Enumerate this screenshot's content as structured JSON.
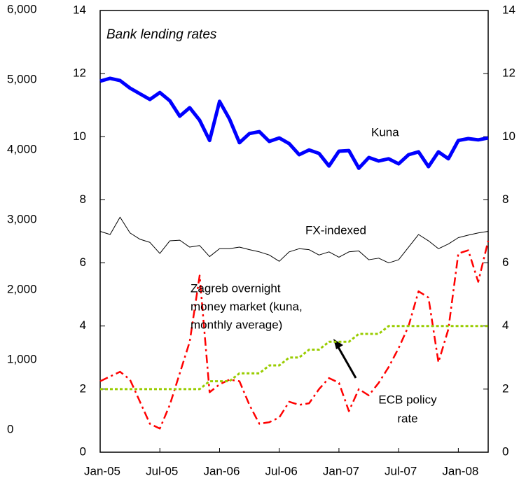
{
  "chart_data": [
    {
      "type": "line",
      "annotations": [
        {
          "text": "Bank lending rates"
        },
        {
          "text": "Kuna"
        },
        {
          "text": "FX-indexed"
        },
        {
          "lines": [
            "Zagreb overnight",
            "money market (kuna,",
            "monthly average)"
          ]
        },
        {
          "lines": [
            "ECB policy",
            "rate"
          ]
        }
      ],
      "categories": [
        "Jan-05",
        null,
        null,
        null,
        null,
        null,
        "Jul-05",
        null,
        null,
        null,
        null,
        null,
        "Jan-06",
        null,
        null,
        null,
        null,
        null,
        "Jul-06",
        null,
        null,
        null,
        null,
        null,
        "Jan-07",
        null,
        null,
        null,
        null,
        null,
        "Jul-07",
        null,
        null,
        null,
        null,
        null,
        "Jan-08",
        null,
        null,
        null
      ],
      "series": [
        {
          "name": "Kuna",
          "color": "#0000ff",
          "width": 5,
          "dash": "none",
          "values": [
            11.76,
            11.85,
            11.78,
            11.54,
            11.36,
            11.18,
            11.4,
            11.14,
            10.65,
            10.92,
            10.52,
            9.88,
            11.12,
            10.56,
            9.81,
            10.1,
            10.16,
            9.85,
            9.96,
            9.78,
            9.43,
            9.58,
            9.47,
            9.07,
            9.54,
            9.56,
            9.0,
            9.34,
            9.23,
            9.3,
            9.14,
            9.43,
            9.52,
            9.05,
            9.52,
            9.3,
            9.88,
            9.94,
            9.9,
            9.96
          ]
        },
        {
          "name": "FX-indexed",
          "color": "#000000",
          "width": 1,
          "dash": "none",
          "values": [
            7.0,
            6.9,
            7.45,
            6.95,
            6.75,
            6.65,
            6.3,
            6.7,
            6.72,
            6.5,
            6.55,
            6.2,
            6.45,
            6.45,
            6.5,
            6.42,
            6.35,
            6.25,
            6.05,
            6.35,
            6.45,
            6.42,
            6.25,
            6.35,
            6.18,
            6.35,
            6.38,
            6.1,
            6.15,
            6.0,
            6.1,
            6.5,
            6.9,
            6.7,
            6.45,
            6.6,
            6.8,
            6.88,
            6.95,
            7.0
          ]
        },
        {
          "name": "Zagreb overnight money market",
          "color": "#ff0000",
          "width": 2.5,
          "dash": "12 5 3 5",
          "values": [
            2.25,
            2.4,
            2.55,
            2.3,
            1.6,
            0.9,
            0.75,
            1.5,
            2.5,
            3.5,
            5.6,
            1.9,
            2.15,
            2.3,
            2.25,
            1.5,
            0.9,
            0.95,
            1.1,
            1.6,
            1.5,
            1.55,
            2.0,
            2.35,
            2.2,
            1.3,
            2.0,
            1.8,
            2.2,
            2.7,
            3.3,
            4.0,
            5.1,
            4.9,
            2.85,
            3.9,
            6.3,
            6.4,
            5.4,
            6.7
          ]
        },
        {
          "name": "ECB policy rate",
          "color": "#99cc00",
          "width": 3,
          "dash": "4 3",
          "values": [
            2.0,
            2.0,
            2.0,
            2.0,
            2.0,
            2.0,
            2.0,
            2.0,
            2.0,
            2.0,
            2.0,
            2.25,
            2.25,
            2.25,
            2.5,
            2.5,
            2.5,
            2.75,
            2.75,
            3.0,
            3.0,
            3.25,
            3.25,
            3.5,
            3.5,
            3.5,
            3.75,
            3.75,
            3.75,
            4.0,
            4.0,
            4.0,
            4.0,
            4.0,
            4.0,
            4.0,
            4.0,
            4.0,
            4.0,
            4.0
          ]
        }
      ],
      "ylim": [
        0,
        14
      ],
      "yticks": [
        0,
        2,
        4,
        6,
        8,
        10,
        12,
        14
      ],
      "y2lim": [
        0,
        14
      ],
      "y2ticks": [
        0,
        2,
        4,
        6,
        8,
        10,
        12,
        14
      ]
    },
    {
      "type": "line",
      "ylim": [
        0,
        6000
      ],
      "yticks": [
        0,
        {
          "value": 1000,
          "label": "1,000"
        },
        {
          "value": 2000,
          "label": "2,000"
        },
        {
          "value": 3000,
          "label": "3,000"
        },
        {
          "value": 4000,
          "label": "4,000"
        },
        {
          "value": 5000,
          "label": "5,000"
        },
        {
          "value": 6000,
          "label": "6,000"
        }
      ]
    }
  ]
}
